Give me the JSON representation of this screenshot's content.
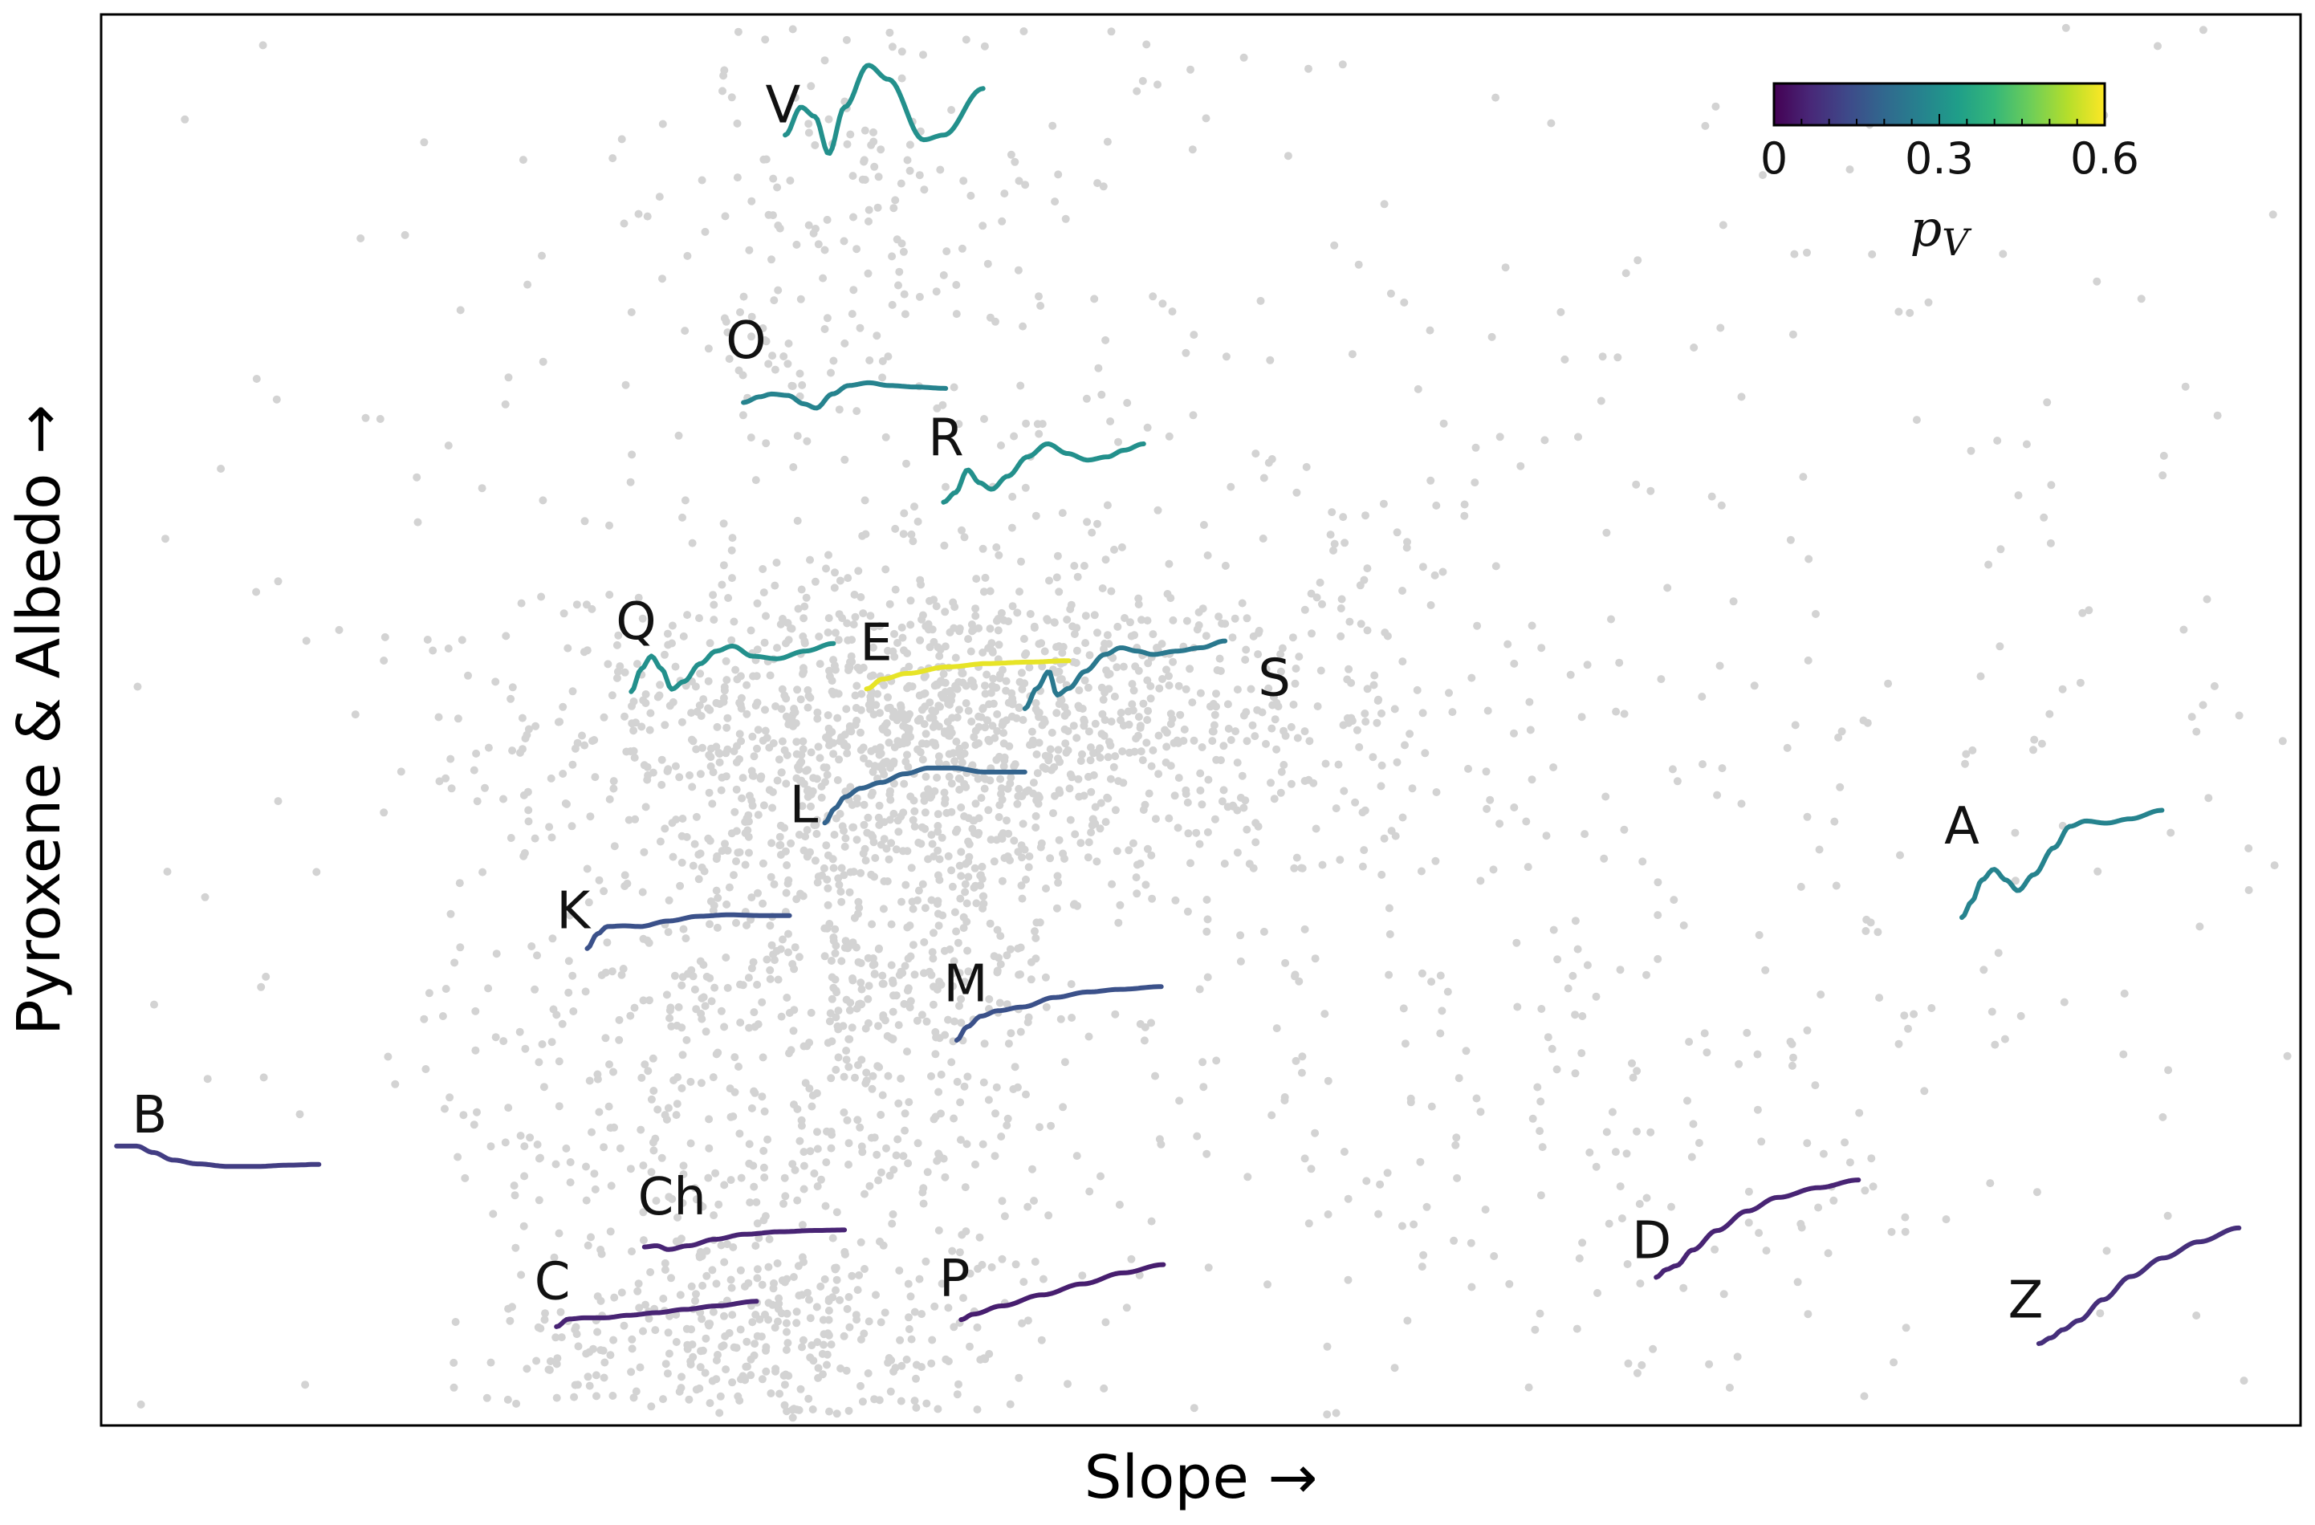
{
  "chart_data": {
    "type": "scatter",
    "title": "",
    "xlabel": "Slope →",
    "ylabel": "Pyroxene & Albedo →",
    "grid": false,
    "xlim": [
      0,
      1
    ],
    "ylim": [
      0,
      1
    ],
    "background_points": {
      "color": "#d3d3d3",
      "description_clusters": [
        {
          "cx": 0.38,
          "cy": 0.5,
          "n": 900,
          "sx": 0.09,
          "sy": 0.05
        },
        {
          "cx": 0.36,
          "cy": 0.4,
          "n": 500,
          "sx": 0.05,
          "sy": 0.1
        },
        {
          "cx": 0.3,
          "cy": 0.25,
          "n": 500,
          "sx": 0.07,
          "sy": 0.12
        },
        {
          "cx": 0.3,
          "cy": 0.06,
          "n": 350,
          "sx": 0.06,
          "sy": 0.04
        },
        {
          "cx": 0.5,
          "cy": 0.48,
          "n": 250,
          "sx": 0.1,
          "sy": 0.1
        },
        {
          "cx": 0.34,
          "cy": 0.83,
          "n": 200,
          "sx": 0.07,
          "sy": 0.1
        },
        {
          "cx": 0.7,
          "cy": 0.2,
          "n": 150,
          "sx": 0.1,
          "sy": 0.1
        },
        {
          "cx": 0.5,
          "cy": 0.5,
          "n": 600,
          "sx": 0.3,
          "sy": 0.3
        }
      ]
    },
    "colorbar": {
      "label": "p_V",
      "min": 0,
      "max": 0.6,
      "ticks": [
        0,
        0.3,
        0.6
      ],
      "tick_labels": [
        "0",
        "0.3",
        "0.6"
      ],
      "colormap": "viridis",
      "stops": [
        "#440154",
        "#482878",
        "#3e4989",
        "#31688e",
        "#26828e",
        "#1f9e89",
        "#35b779",
        "#6ece58",
        "#b5de2b",
        "#fde725"
      ]
    },
    "classes": [
      {
        "label": "V",
        "pv": 0.3,
        "x0": 0.311,
        "y0": 0.898,
        "x1": 0.401,
        "y1": 0.964,
        "shape": "V",
        "label_x": 0.302,
        "label_y": 0.936
      },
      {
        "label": "O",
        "pv": 0.27,
        "x0": 0.292,
        "y0": 0.72,
        "x1": 0.384,
        "y1": 0.74,
        "shape": "O",
        "label_x": 0.284,
        "label_y": 0.769
      },
      {
        "label": "R",
        "pv": 0.3,
        "x0": 0.383,
        "y0": 0.652,
        "x1": 0.474,
        "y1": 0.698,
        "shape": "R",
        "label_x": 0.376,
        "label_y": 0.7
      },
      {
        "label": "Q",
        "pv": 0.3,
        "x0": 0.241,
        "y0": 0.52,
        "x1": 0.333,
        "y1": 0.556,
        "shape": "Q",
        "label_x": 0.234,
        "label_y": 0.57
      },
      {
        "label": "E",
        "pv": 0.58,
        "x0": 0.348,
        "y0": 0.522,
        "x1": 0.44,
        "y1": 0.542,
        "shape": "E",
        "label_x": 0.345,
        "label_y": 0.555
      },
      {
        "label": "S",
        "pv": 0.24,
        "x0": 0.42,
        "y0": 0.508,
        "x1": 0.511,
        "y1": 0.556,
        "shape": "S",
        "label_x": 0.526,
        "label_y": 0.53
      },
      {
        "label": "L",
        "pv": 0.19,
        "x0": 0.329,
        "y0": 0.427,
        "x1": 0.42,
        "y1": 0.468,
        "shape": "L",
        "label_x": 0.313,
        "label_y": 0.44
      },
      {
        "label": "K",
        "pv": 0.15,
        "x0": 0.221,
        "y0": 0.338,
        "x1": 0.313,
        "y1": 0.364,
        "shape": "K",
        "label_x": 0.207,
        "label_y": 0.365
      },
      {
        "label": "M",
        "pv": 0.15,
        "x0": 0.389,
        "y0": 0.273,
        "x1": 0.482,
        "y1": 0.311,
        "shape": "M",
        "label_x": 0.383,
        "label_y": 0.313
      },
      {
        "label": "A",
        "pv": 0.27,
        "x0": 0.846,
        "y0": 0.36,
        "x1": 0.937,
        "y1": 0.436,
        "shape": "A",
        "label_x": 0.838,
        "label_y": 0.425
      },
      {
        "label": "B",
        "pv": 0.11,
        "x0": 0.007,
        "y0": 0.18,
        "x1": 0.099,
        "y1": 0.198,
        "shape": "B",
        "label_x": 0.014,
        "label_y": 0.22
      },
      {
        "label": "Ch",
        "pv": 0.06,
        "x0": 0.247,
        "y0": 0.122,
        "x1": 0.338,
        "y1": 0.14,
        "shape": "Ch",
        "label_x": 0.244,
        "label_y": 0.162
      },
      {
        "label": "C",
        "pv": 0.06,
        "x0": 0.207,
        "y0": 0.07,
        "x1": 0.298,
        "y1": 0.088,
        "shape": "C",
        "label_x": 0.197,
        "label_y": 0.102
      },
      {
        "label": "P",
        "pv": 0.05,
        "x0": 0.391,
        "y0": 0.075,
        "x1": 0.483,
        "y1": 0.114,
        "shape": "P",
        "label_x": 0.381,
        "label_y": 0.104
      },
      {
        "label": "D",
        "pv": 0.06,
        "x0": 0.707,
        "y0": 0.105,
        "x1": 0.799,
        "y1": 0.174,
        "shape": "D",
        "label_x": 0.696,
        "label_y": 0.131
      },
      {
        "label": "Z",
        "pv": 0.08,
        "x0": 0.881,
        "y0": 0.058,
        "x1": 0.972,
        "y1": 0.14,
        "shape": "Z",
        "label_x": 0.867,
        "label_y": 0.089
      }
    ]
  }
}
